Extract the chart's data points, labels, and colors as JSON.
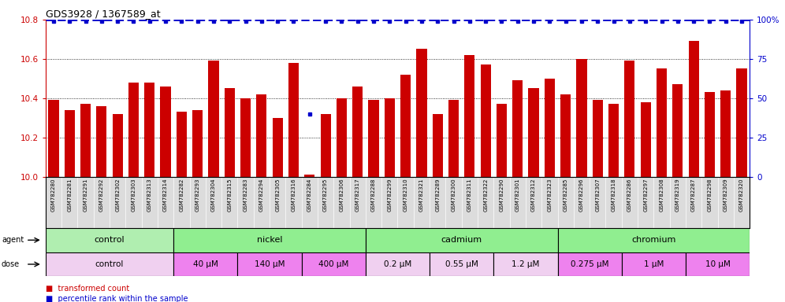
{
  "title": "GDS3928 / 1367589_at",
  "bar_color": "#CC0000",
  "blue_color": "#0000CC",
  "bg_color": "#FFFFFF",
  "xtick_bg": "#D3D3D3",
  "ylim_left": [
    10.0,
    10.8
  ],
  "ylim_right": [
    0,
    100
  ],
  "yticks_left": [
    10.0,
    10.2,
    10.4,
    10.6,
    10.8
  ],
  "yticks_right": [
    0,
    25,
    50,
    75,
    100
  ],
  "samples": [
    "GSM782280",
    "GSM782281",
    "GSM782291",
    "GSM782292",
    "GSM782302",
    "GSM782303",
    "GSM782313",
    "GSM782314",
    "GSM782282",
    "GSM782293",
    "GSM782304",
    "GSM782315",
    "GSM782283",
    "GSM782294",
    "GSM782305",
    "GSM782316",
    "GSM782284",
    "GSM782295",
    "GSM782306",
    "GSM782317",
    "GSM782288",
    "GSM782299",
    "GSM782310",
    "GSM782321",
    "GSM782289",
    "GSM782300",
    "GSM782311",
    "GSM782322",
    "GSM782290",
    "GSM782301",
    "GSM782312",
    "GSM782323",
    "GSM782285",
    "GSM782296",
    "GSM782307",
    "GSM782318",
    "GSM782286",
    "GSM782297",
    "GSM782308",
    "GSM782319",
    "GSM782287",
    "GSM782298",
    "GSM782309",
    "GSM782320"
  ],
  "bar_values": [
    10.39,
    10.34,
    10.37,
    10.36,
    10.32,
    10.48,
    10.48,
    10.46,
    10.33,
    10.34,
    10.59,
    10.45,
    10.4,
    10.42,
    10.3,
    10.58,
    10.01,
    10.32,
    10.4,
    10.46,
    10.39,
    10.4,
    10.52,
    10.65,
    10.32,
    10.39,
    10.62,
    10.57,
    10.37,
    10.49,
    10.45,
    10.5,
    10.42,
    10.6,
    10.39,
    10.37,
    10.59,
    10.38,
    10.55,
    10.47,
    10.69,
    10.43,
    10.44,
    10.55
  ],
  "percentile_values": [
    99,
    99,
    99,
    99,
    99,
    99,
    99,
    99,
    99,
    99,
    99,
    99,
    99,
    99,
    99,
    99,
    40,
    99,
    99,
    99,
    99,
    99,
    99,
    99,
    99,
    99,
    99,
    99,
    99,
    99,
    99,
    99,
    99,
    99,
    99,
    99,
    99,
    99,
    99,
    99,
    99,
    99,
    99,
    99
  ],
  "agents": [
    {
      "label": "control",
      "start": 0,
      "end": 8,
      "color": "#B0EEB0"
    },
    {
      "label": "nickel",
      "start": 8,
      "end": 20,
      "color": "#90EE90"
    },
    {
      "label": "cadmium",
      "start": 20,
      "end": 32,
      "color": "#90EE90"
    },
    {
      "label": "chromium",
      "start": 32,
      "end": 44,
      "color": "#90EE90"
    }
  ],
  "doses": [
    {
      "label": "control",
      "start": 0,
      "end": 8,
      "color": "#F0D0F0"
    },
    {
      "label": "40 μM",
      "start": 8,
      "end": 12,
      "color": "#EE82EE"
    },
    {
      "label": "140 μM",
      "start": 12,
      "end": 16,
      "color": "#EE82EE"
    },
    {
      "label": "400 μM",
      "start": 16,
      "end": 20,
      "color": "#EE82EE"
    },
    {
      "label": "0.2 μM",
      "start": 20,
      "end": 24,
      "color": "#F0D0F0"
    },
    {
      "label": "0.55 μM",
      "start": 24,
      "end": 28,
      "color": "#F0D0F0"
    },
    {
      "label": "1.2 μM",
      "start": 28,
      "end": 32,
      "color": "#F0D0F0"
    },
    {
      "label": "0.275 μM",
      "start": 32,
      "end": 36,
      "color": "#EE82EE"
    },
    {
      "label": "1 μM",
      "start": 36,
      "end": 40,
      "color": "#EE82EE"
    },
    {
      "label": "10 μM",
      "start": 40,
      "end": 44,
      "color": "#EE82EE"
    }
  ]
}
